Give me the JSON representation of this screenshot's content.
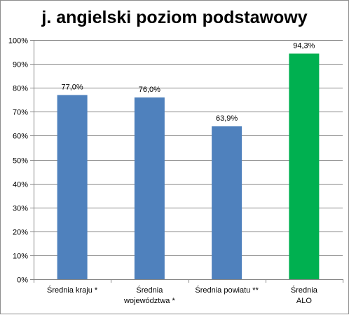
{
  "chart_data": {
    "type": "bar",
    "title": "j. angielski poziom podstawowy",
    "categories": [
      [
        "Średnia kraju *"
      ],
      [
        "Średnia",
        "województwa *"
      ],
      [
        "Średnia powiatu **"
      ],
      [
        "Średnia",
        "ALO"
      ]
    ],
    "values": [
      77.0,
      76.0,
      63.9,
      94.3
    ],
    "data_labels": [
      "77,0%",
      "76,0%",
      "63,9%",
      "94,3%"
    ],
    "bar_colors": [
      "#4f81bd",
      "#4f81bd",
      "#4f81bd",
      "#00b050"
    ],
    "ylim": [
      0,
      100
    ],
    "yticks": [
      0,
      10,
      20,
      30,
      40,
      50,
      60,
      70,
      80,
      90,
      100
    ],
    "ytick_labels": [
      "0%",
      "10%",
      "20%",
      "30%",
      "40%",
      "50%",
      "60%",
      "70%",
      "80%",
      "90%",
      "100%"
    ],
    "grid": true,
    "legend": "none",
    "xlabel": "",
    "ylabel": ""
  }
}
